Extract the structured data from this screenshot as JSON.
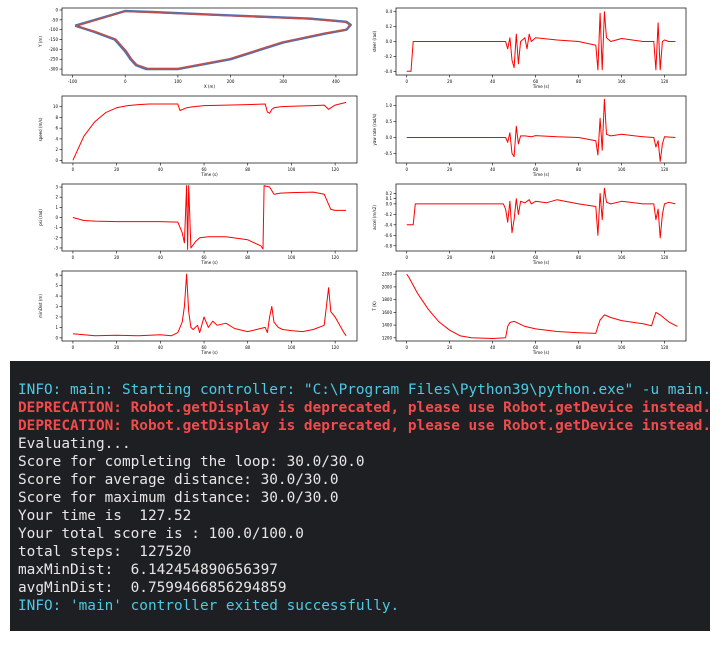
{
  "colors": {
    "trajectory": "#4c72b0",
    "reference": "#c0504d",
    "series": "#ff0000",
    "console_bg": "#1e1f22",
    "info": "#4ec9e3",
    "deprecation": "#f24b4b",
    "output": "#e6e6e6"
  },
  "chart_data": [
    {
      "type": "line",
      "xlabel": "X (m)",
      "ylabel": "Y (m)",
      "xlim": [
        -120,
        440
      ],
      "ylim": [
        -330,
        10
      ],
      "xticks": [
        "-100",
        "0",
        "100",
        "200",
        "300",
        "400"
      ],
      "yticks": [
        "0",
        "-50",
        "-100",
        "-150",
        "-200",
        "-250",
        "-300"
      ],
      "series": [
        {
          "x": [
            -95,
            0,
            50,
            150,
            250,
            350,
            420,
            428,
            420,
            380,
            300,
            200,
            100,
            40,
            20,
            10,
            0,
            -20,
            -60,
            -95
          ],
          "y": [
            -80,
            -5,
            -10,
            -22,
            -33,
            -44,
            -60,
            -75,
            -100,
            -120,
            -165,
            -250,
            -300,
            -300,
            -280,
            -250,
            -210,
            -150,
            -110,
            -80
          ]
        },
        {
          "x": [
            -93,
            0,
            50,
            150,
            250,
            350,
            418,
            426,
            420,
            378,
            298,
            198,
            100,
            42,
            22,
            12,
            2,
            -18,
            -58,
            -93
          ],
          "y": [
            -82,
            -8,
            -13,
            -24,
            -35,
            -46,
            -62,
            -76,
            -99,
            -118,
            -163,
            -248,
            -297,
            -296,
            -277,
            -248,
            -208,
            -148,
            -108,
            -82
          ]
        }
      ]
    },
    {
      "type": "line",
      "xlabel": "Time (s)",
      "ylabel": "steer (rad)",
      "xlim": [
        -5,
        130
      ],
      "ylim": [
        -0.45,
        0.45
      ],
      "xticks": [
        "0",
        "20",
        "40",
        "60",
        "80",
        "100",
        "120"
      ],
      "yticks": [
        "0.4",
        "0.2",
        "0.0",
        "-0.2",
        "-0.4"
      ],
      "series": [
        {
          "x": [
            0,
            2,
            3,
            46,
            47,
            48,
            49,
            50,
            51,
            52,
            53,
            55,
            56,
            57,
            58,
            60,
            70,
            80,
            88,
            89,
            90,
            91,
            92,
            93,
            95,
            100,
            110,
            115,
            116,
            117,
            118,
            119,
            120,
            122,
            125
          ],
          "y": [
            -0.4,
            -0.4,
            0.0,
            0.0,
            -0.1,
            0.05,
            -0.25,
            -0.35,
            0.1,
            -0.3,
            0.0,
            0.05,
            -0.1,
            0.1,
            0.0,
            0.05,
            0.02,
            0.0,
            -0.05,
            -0.38,
            0.38,
            -0.38,
            0.4,
            0.05,
            0.0,
            0.04,
            0.0,
            0.0,
            -0.38,
            0.25,
            -0.38,
            0.0,
            0.02,
            0.0,
            0.0
          ]
        }
      ]
    },
    {
      "type": "line",
      "xlabel": "Time (s)",
      "ylabel": "speed (m/s)",
      "xlim": [
        -5,
        130
      ],
      "ylim": [
        -0.5,
        12
      ],
      "xticks": [
        "0",
        "20",
        "40",
        "60",
        "80",
        "100",
        "120"
      ],
      "yticks": [
        "0",
        "2",
        "4",
        "6",
        "8",
        "10"
      ],
      "series": [
        {
          "x": [
            0,
            5,
            10,
            15,
            20,
            25,
            30,
            35,
            40,
            48,
            49,
            52,
            55,
            60,
            70,
            80,
            88,
            89,
            90,
            91,
            92,
            95,
            100,
            110,
            115,
            117,
            118,
            120,
            125
          ],
          "y": [
            0,
            4.5,
            7.2,
            8.9,
            9.8,
            10.2,
            10.4,
            10.5,
            10.5,
            10.5,
            9.3,
            9.8,
            10.0,
            10.2,
            10.3,
            10.4,
            10.5,
            9.0,
            8.8,
            9.5,
            9.8,
            10.0,
            10.1,
            10.2,
            10.3,
            9.5,
            9.8,
            10.3,
            10.8
          ]
        }
      ]
    },
    {
      "type": "line",
      "xlabel": "Time (s)",
      "ylabel": "yaw rate (rad/s)",
      "xlim": [
        -5,
        130
      ],
      "ylim": [
        -0.8,
        1.3
      ],
      "xticks": [
        "0",
        "20",
        "40",
        "60",
        "80",
        "100",
        "120"
      ],
      "yticks": [
        "1.0",
        "0.5",
        "0.0",
        "-0.5"
      ],
      "series": [
        {
          "x": [
            0,
            46,
            47,
            48,
            49,
            50,
            51,
            52,
            53,
            55,
            58,
            60,
            70,
            80,
            88,
            89,
            90,
            91,
            92,
            93,
            95,
            100,
            110,
            115,
            116,
            117,
            118,
            119,
            120,
            125
          ],
          "y": [
            0.0,
            0.0,
            -0.15,
            0.15,
            -0.5,
            -0.6,
            0.35,
            -0.2,
            0.05,
            0.05,
            0.02,
            0.06,
            0.02,
            0.0,
            -0.1,
            -0.55,
            0.6,
            -0.4,
            1.2,
            0.1,
            0.05,
            0.1,
            0.02,
            0.0,
            -0.3,
            -0.1,
            -0.75,
            -0.2,
            0.02,
            0.0
          ]
        }
      ]
    },
    {
      "type": "line",
      "xlabel": "Time (s)",
      "ylabel": "psi (rad)",
      "xlim": [
        -5,
        130
      ],
      "ylim": [
        -3.3,
        3.3
      ],
      "xticks": [
        "0",
        "20",
        "40",
        "60",
        "80",
        "100",
        "120"
      ],
      "yticks": [
        "3",
        "2",
        "1",
        "0",
        "-1",
        "-2",
        "-3"
      ],
      "series": [
        {
          "x": [
            0,
            5,
            10,
            20,
            40,
            48,
            50,
            51,
            52,
            52.5,
            53,
            54,
            56,
            58,
            62,
            70,
            80,
            86,
            87,
            87.5,
            88,
            90,
            92,
            95,
            100,
            110,
            115,
            118,
            120,
            125
          ],
          "y": [
            0,
            -0.3,
            -0.35,
            -0.4,
            -0.4,
            -0.45,
            -1.5,
            -2.5,
            3.14,
            -3.14,
            3.14,
            -3.0,
            -2.4,
            -2.0,
            -1.9,
            -1.9,
            -2.2,
            -2.8,
            -3.1,
            3.14,
            3.1,
            3.0,
            2.3,
            2.4,
            2.45,
            2.5,
            2.3,
            0.8,
            0.7,
            0.7
          ]
        }
      ]
    },
    {
      "type": "line",
      "xlabel": "Time (s)",
      "ylabel": "accel (m/s2)",
      "xlim": [
        -5,
        130
      ],
      "ylim": [
        -0.9,
        0.38
      ],
      "xticks": [
        "0",
        "20",
        "40",
        "60",
        "80",
        "100",
        "120"
      ],
      "yticks": [
        "0.2",
        "0.1",
        "0.0",
        "-0.2",
        "-0.4",
        "-0.6",
        "-0.8"
      ],
      "series": [
        {
          "x": [
            0,
            3,
            4,
            45,
            46,
            47,
            48,
            49,
            50,
            51,
            52,
            53,
            55,
            57,
            58,
            60,
            65,
            70,
            80,
            88,
            89,
            90,
            91,
            92,
            93,
            95,
            100,
            110,
            115,
            116,
            117,
            118,
            119,
            120,
            122,
            125
          ],
          "y": [
            -0.4,
            -0.4,
            0.0,
            0.0,
            -0.1,
            -0.35,
            0.05,
            -0.55,
            -0.3,
            0.1,
            -0.2,
            0.05,
            0.02,
            0.08,
            0.0,
            0.05,
            0.02,
            0.08,
            0.0,
            -0.05,
            -0.6,
            0.2,
            -0.3,
            0.3,
            0.03,
            0.0,
            0.05,
            0.0,
            0.0,
            -0.3,
            -0.1,
            -0.65,
            -0.2,
            0.0,
            0.03,
            0.0
          ]
        }
      ]
    },
    {
      "type": "line",
      "xlabel": "Time (s)",
      "ylabel": "minDist (m)",
      "xlim": [
        -5,
        130
      ],
      "ylim": [
        -0.3,
        6.4
      ],
      "xticks": [
        "0",
        "20",
        "40",
        "60",
        "80",
        "100",
        "120"
      ],
      "yticks": [
        "0",
        "1",
        "2",
        "3",
        "4",
        "5",
        "6"
      ],
      "series": [
        {
          "x": [
            0,
            5,
            10,
            20,
            30,
            40,
            45,
            48,
            50,
            51,
            52,
            53,
            54,
            55,
            57,
            58,
            60,
            62,
            64,
            66,
            70,
            74,
            78,
            80,
            84,
            88,
            89,
            90,
            91,
            92,
            94,
            96,
            100,
            105,
            110,
            115,
            116,
            117,
            118,
            120,
            124,
            125
          ],
          "y": [
            0.4,
            0.3,
            0.2,
            0.25,
            0.2,
            0.3,
            0.2,
            0.5,
            1.5,
            3.0,
            6.1,
            2.5,
            1.0,
            0.8,
            1.2,
            0.5,
            2.0,
            1.0,
            1.6,
            1.2,
            1.4,
            0.9,
            0.7,
            0.6,
            0.8,
            1.0,
            0.5,
            2.0,
            3.0,
            1.5,
            1.0,
            0.8,
            0.7,
            0.6,
            0.8,
            1.2,
            3.0,
            4.8,
            2.5,
            2.0,
            0.5,
            0.2
          ]
        }
      ]
    },
    {
      "type": "line",
      "xlabel": "Time (s)",
      "ylabel": "T (K)",
      "xlim": [
        -5,
        130
      ],
      "ylim": [
        1150,
        2250
      ],
      "xticks": [
        "0",
        "20",
        "40",
        "60",
        "80",
        "100",
        "120"
      ],
      "yticks": [
        "2200",
        "2000",
        "1800",
        "1600",
        "1400",
        "1200"
      ],
      "series": [
        {
          "x": [
            0,
            1,
            5,
            10,
            15,
            20,
            25,
            30,
            40,
            46,
            47,
            48,
            50,
            55,
            60,
            70,
            80,
            88,
            89,
            90,
            92,
            95,
            100,
            110,
            114,
            115,
            116,
            118,
            122,
            126
          ],
          "y": [
            2200,
            2150,
            1900,
            1650,
            1450,
            1320,
            1230,
            1200,
            1190,
            1200,
            1380,
            1440,
            1460,
            1380,
            1340,
            1300,
            1280,
            1270,
            1380,
            1480,
            1560,
            1520,
            1470,
            1420,
            1390,
            1500,
            1600,
            1560,
            1450,
            1380
          ]
        }
      ]
    }
  ],
  "console": {
    "lines": [
      {
        "kind": "info",
        "text": "INFO: main: Starting controller: \"C:\\Program Files\\Python39\\python.exe\" -u main.py"
      },
      {
        "kind": "dep",
        "text": "DEPRECATION: Robot.getDisplay is deprecated, please use Robot.getDevice instead."
      },
      {
        "kind": "dep",
        "text": "DEPRECATION: Robot.getDisplay is deprecated, please use Robot.getDevice instead."
      },
      {
        "kind": "std",
        "text": "Evaluating..."
      },
      {
        "kind": "std",
        "text": "Score for completing the loop: 30.0/30.0"
      },
      {
        "kind": "std",
        "text": "Score for average distance: 30.0/30.0"
      },
      {
        "kind": "std",
        "text": "Score for maximum distance: 30.0/30.0"
      },
      {
        "kind": "std",
        "text": "Your time is  127.52"
      },
      {
        "kind": "std",
        "text": "Your total score is : 100.0/100.0"
      },
      {
        "kind": "std",
        "text": "total steps:  127520"
      },
      {
        "kind": "std",
        "text": "maxMinDist:  6.142454890656397"
      },
      {
        "kind": "std",
        "text": "avgMinDist:  0.7599466856294859"
      },
      {
        "kind": "info",
        "text": "INFO: 'main' controller exited successfully."
      }
    ]
  }
}
